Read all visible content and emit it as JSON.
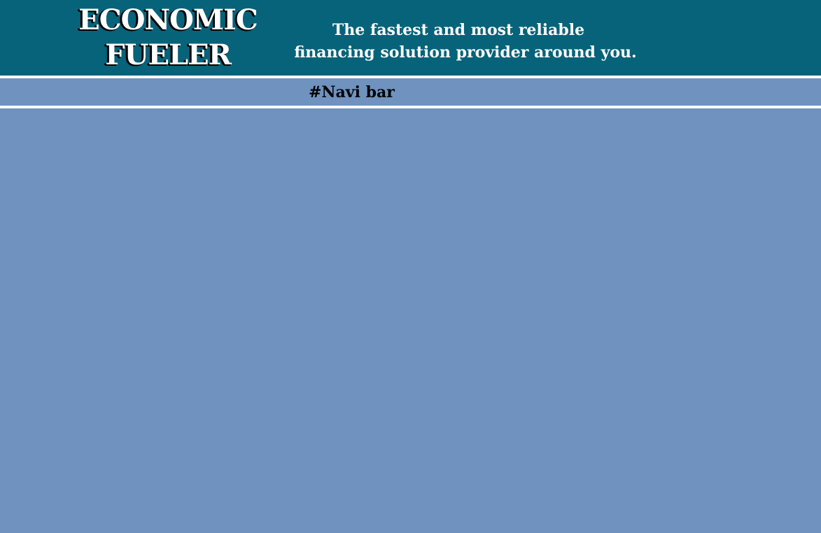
{
  "header": {
    "logo_line1": "ECONOMIC",
    "logo_line2": "FUELER",
    "tagline_line1": "The fastest and most reliable",
    "tagline_line2": "financing solution provider around you."
  },
  "navbar": {
    "label": "#Navi bar"
  },
  "colors": {
    "header_bg": "#066379",
    "page_bg": "#6f92bf",
    "divider": "#ffffff",
    "text_light": "#ffffff",
    "text_dark": "#000000"
  }
}
